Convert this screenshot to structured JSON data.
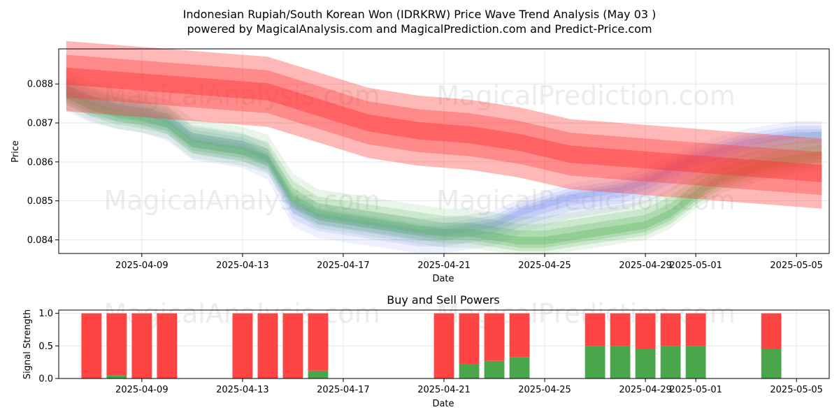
{
  "title_line1": "Indonesian Rupiah/South Korean Won (IDRKRW) Price Wave Trend Analysis (May 03 )",
  "title_line2": "powered by MagicalAnalysis.com and MagicalPrediction.com and Predict-Price.com",
  "watermarks": [
    "MagicalAnalysis.com",
    "MagicalPrediction.com"
  ],
  "colors": {
    "sell": "#ff4444",
    "buy": "#4aa64a",
    "band_green": "#4caf50",
    "band_blue": "#7788ee",
    "band_red": "#ff3333"
  },
  "chart_data": [
    {
      "type": "area",
      "name": "price-wave",
      "xlabel": "Date",
      "ylabel": "Price",
      "x_domain": [
        -1.3,
        29.3
      ],
      "ylim": [
        0.08365,
        0.0889
      ],
      "yticks": [
        0.084,
        0.085,
        0.086,
        0.087,
        0.088
      ],
      "ytick_labels": [
        "0.084",
        "0.085",
        "0.086",
        "0.087",
        "0.088"
      ],
      "xticks": [
        2,
        6,
        10,
        14,
        18,
        22,
        24,
        28
      ],
      "xtick_labels": [
        "2025-04-09",
        "2025-04-13",
        "2025-04-17",
        "2025-04-21",
        "2025-04-25",
        "2025-04-29",
        "2025-05-01",
        "2025-05-05"
      ],
      "grid": true,
      "green_center": {
        "x": [
          -1,
          0,
          1,
          2,
          3,
          4,
          5,
          6,
          7,
          8,
          9,
          10,
          11,
          12,
          13,
          14,
          15,
          16,
          17,
          18,
          19,
          20,
          21,
          22,
          23,
          24,
          25,
          26,
          27,
          28,
          29
        ],
        "y": [
          0.08785,
          0.08755,
          0.08735,
          0.08725,
          0.0871,
          0.0866,
          0.0865,
          0.0864,
          0.0862,
          0.0852,
          0.0848,
          0.0847,
          0.0846,
          0.0845,
          0.0844,
          0.0843,
          0.0843,
          0.0842,
          0.0841,
          0.0841,
          0.0842,
          0.0843,
          0.0844,
          0.0845,
          0.0848,
          0.0853,
          0.0857,
          0.0859,
          0.0861,
          0.0862,
          0.0863
        ]
      },
      "blue_center": {
        "x": [
          -1,
          0,
          1,
          2,
          3,
          4,
          5,
          6,
          7,
          8,
          9,
          10,
          11,
          12,
          13,
          14,
          15,
          16,
          17,
          18,
          19,
          20,
          21,
          22,
          23,
          24,
          25,
          26,
          27,
          28,
          29
        ],
        "y": [
          0.08775,
          0.08745,
          0.0873,
          0.0872,
          0.087,
          0.0865,
          0.0864,
          0.0863,
          0.086,
          0.0848,
          0.0845,
          0.0844,
          0.0843,
          0.0842,
          0.0841,
          0.0841,
          0.0842,
          0.0843,
          0.0846,
          0.0848,
          0.085,
          0.0851,
          0.0852,
          0.0854,
          0.0857,
          0.086,
          0.0862,
          0.0864,
          0.0865,
          0.0866,
          0.0866
        ]
      },
      "red_center": {
        "x": [
          -1,
          1,
          3,
          5,
          7,
          9,
          11,
          13,
          15,
          17,
          19,
          21,
          23,
          25,
          27,
          29
        ],
        "y": [
          0.0882,
          0.0881,
          0.088,
          0.0879,
          0.0878,
          0.0874,
          0.087,
          0.0868,
          0.0867,
          0.0865,
          0.0862,
          0.0861,
          0.086,
          0.0859,
          0.0858,
          0.0857
        ]
      }
    },
    {
      "type": "bar",
      "name": "buy-sell-powers",
      "title": "Buy and Sell Powers",
      "xlabel": "Date",
      "ylabel": "Signal Strength",
      "ylim": [
        0,
        1.05
      ],
      "yticks": [
        0.0,
        0.5,
        1.0
      ],
      "ytick_labels": [
        "0.0",
        "0.5",
        "1.0"
      ],
      "x_domain": [
        -1.3,
        29.3
      ],
      "xticks": [
        2,
        6,
        10,
        14,
        18,
        22,
        24,
        28
      ],
      "xtick_labels": [
        "2025-04-09",
        "2025-04-13",
        "2025-04-17",
        "2025-04-21",
        "2025-04-25",
        "2025-04-29",
        "2025-05-01",
        "2025-05-05"
      ],
      "grid": true,
      "bars": [
        {
          "x": 0,
          "buy": 0.0,
          "sell": 1.0
        },
        {
          "x": 1,
          "buy": 0.05,
          "sell": 0.95
        },
        {
          "x": 2,
          "buy": 0.0,
          "sell": 1.0
        },
        {
          "x": 3,
          "buy": 0.0,
          "sell": 1.0
        },
        {
          "x": 6,
          "buy": 0.0,
          "sell": 1.0
        },
        {
          "x": 7,
          "buy": 0.0,
          "sell": 1.0
        },
        {
          "x": 8,
          "buy": 0.0,
          "sell": 1.0
        },
        {
          "x": 9,
          "buy": 0.12,
          "sell": 0.88
        },
        {
          "x": 14,
          "buy": 0.0,
          "sell": 1.0
        },
        {
          "x": 15,
          "buy": 0.22,
          "sell": 0.78
        },
        {
          "x": 16,
          "buy": 0.27,
          "sell": 0.73
        },
        {
          "x": 17,
          "buy": 0.33,
          "sell": 0.67
        },
        {
          "x": 20,
          "buy": 0.5,
          "sell": 0.5
        },
        {
          "x": 21,
          "buy": 0.5,
          "sell": 0.5
        },
        {
          "x": 22,
          "buy": 0.45,
          "sell": 0.55
        },
        {
          "x": 23,
          "buy": 0.5,
          "sell": 0.5
        },
        {
          "x": 24,
          "buy": 0.5,
          "sell": 0.5
        },
        {
          "x": 27,
          "buy": 0.45,
          "sell": 0.55
        }
      ]
    }
  ]
}
